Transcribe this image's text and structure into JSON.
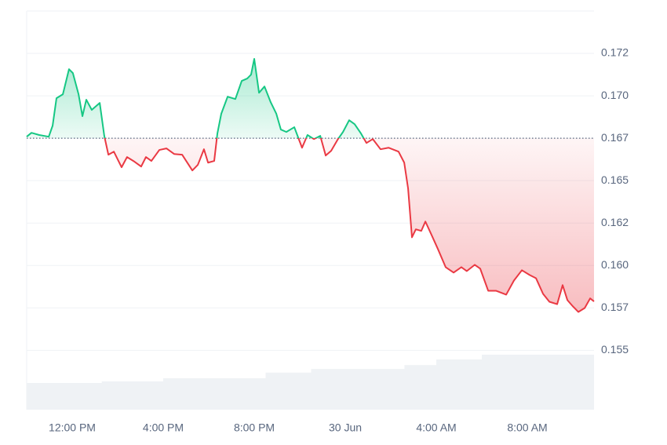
{
  "chart_data": {
    "type": "line",
    "x": [
      10.0,
      10.21,
      10.55,
      10.97,
      11.14,
      11.31,
      11.59,
      11.86,
      12.03,
      12.28,
      12.45,
      12.62,
      12.86,
      13.21,
      13.41,
      13.59,
      13.83,
      14.17,
      14.41,
      14.69,
      15.03,
      15.24,
      15.48,
      15.83,
      16.14,
      16.48,
      16.83,
      17.28,
      17.52,
      17.79,
      17.97,
      18.24,
      18.38,
      18.55,
      18.83,
      19.17,
      19.45,
      19.69,
      19.86,
      20.0,
      20.21,
      20.45,
      20.72,
      20.97,
      21.17,
      21.41,
      21.76,
      22.1,
      22.34,
      22.62,
      22.9,
      23.14,
      23.38,
      23.66,
      23.9,
      24.17,
      24.41,
      24.69,
      24.93,
      25.21,
      25.55,
      25.9,
      26.34,
      26.59,
      26.76,
      26.93,
      27.1,
      27.34,
      27.52,
      27.79,
      28.07,
      28.41,
      28.76,
      29.1,
      29.34,
      29.69,
      29.93,
      30.28,
      30.62,
      31.07,
      31.41,
      31.76,
      32.1,
      32.38,
      32.69,
      32.97,
      33.31,
      33.55,
      33.76,
      34.0,
      34.24,
      34.52,
      34.76,
      34.93
    ],
    "series": [
      {
        "color": "#16c784",
        "below_color": "#ea3943",
        "values": [
          0.16759,
          0.16782,
          0.16769,
          0.16759,
          0.16824,
          0.16986,
          0.17009,
          0.17157,
          0.17134,
          0.17009,
          0.1688,
          0.16977,
          0.16917,
          0.16958,
          0.16764,
          0.16653,
          0.16671,
          0.16579,
          0.16639,
          0.16616,
          0.16583,
          0.16639,
          0.16616,
          0.16681,
          0.1669,
          0.16657,
          0.16653,
          0.1656,
          0.16593,
          0.16685,
          0.16606,
          0.16616,
          0.16778,
          0.16894,
          0.16995,
          0.16981,
          0.17088,
          0.17102,
          0.17125,
          0.17218,
          0.17018,
          0.17055,
          0.16963,
          0.16894,
          0.16801,
          0.16787,
          0.16815,
          0.16694,
          0.16769,
          0.16745,
          0.16764,
          0.16648,
          0.16676,
          0.16741,
          0.16787,
          0.16856,
          0.16833,
          0.16778,
          0.16722,
          0.16745,
          0.16685,
          0.16694,
          0.16671,
          0.16606,
          0.16454,
          0.16166,
          0.16213,
          0.16204,
          0.16259,
          0.1618,
          0.16097,
          0.1599,
          0.15958,
          0.1599,
          0.15967,
          0.16004,
          0.15981,
          0.15851,
          0.15851,
          0.15828,
          0.15911,
          0.15972,
          0.15944,
          0.15925,
          0.15833,
          0.15786,
          0.15772,
          0.15884,
          0.15796,
          0.15759,
          0.15726,
          0.15749,
          0.15806,
          0.15788
        ]
      }
    ],
    "baseline": 0.1675,
    "volume": {
      "color": "#eff2f5",
      "axis": "y2",
      "x": [
        10.0,
        13.3,
        16.0,
        20.5,
        22.5,
        26.6,
        28.0,
        30.0,
        34.93
      ],
      "values": [
        6.7,
        7.1,
        7.9,
        9.3,
        10.2,
        11.2,
        12.6,
        13.8,
        13.8
      ]
    },
    "y2lim": [
      0,
      100
    ],
    "xlim": [
      10.0,
      34.93
    ],
    "xticks": [
      {
        "value": 12,
        "label": "12:00 PM"
      },
      {
        "value": 16,
        "label": "4:00 PM"
      },
      {
        "value": 20,
        "label": "8:00 PM"
      },
      {
        "value": 24,
        "label": "30 Jun"
      },
      {
        "value": 28,
        "label": "4:00 AM"
      },
      {
        "value": 32,
        "label": "8:00 AM"
      }
    ],
    "ylim": [
      0.1515,
      0.175
    ],
    "yticks": [
      {
        "value": 0.155,
        "label": "0.155"
      },
      {
        "value": 0.1575,
        "label": "0.157"
      },
      {
        "value": 0.16,
        "label": "0.160"
      },
      {
        "value": 0.1625,
        "label": "0.162"
      },
      {
        "value": 0.165,
        "label": "0.165"
      },
      {
        "value": 0.1675,
        "label": "0.167"
      },
      {
        "value": 0.17,
        "label": "0.170"
      },
      {
        "value": 0.1725,
        "label": "0.172"
      }
    ],
    "grid": true
  }
}
